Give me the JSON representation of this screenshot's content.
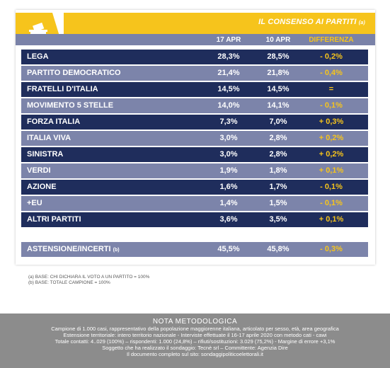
{
  "header": {
    "title": "IL CONSENSO AI PARTITI",
    "title_note": "(a)",
    "columns": [
      "17 APR",
      "10 APR",
      "DIFFERENZA"
    ]
  },
  "rows": [
    {
      "label": "LEGA",
      "note": "",
      "v17": "28,3%",
      "v10": "28,5%",
      "diff": "- 0,2%"
    },
    {
      "label": "PARTITO DEMOCRATICO",
      "note": "",
      "v17": "21,4%",
      "v10": "21,8%",
      "diff": "- 0,4%"
    },
    {
      "label": "FRATELLI D'ITALIA",
      "note": "",
      "v17": "14,5%",
      "v10": "14,5%",
      "diff": "="
    },
    {
      "label": "MOVIMENTO 5 STELLE",
      "note": "",
      "v17": "14,0%",
      "v10": "14,1%",
      "diff": "- 0,1%"
    },
    {
      "label": "FORZA ITALIA",
      "note": "",
      "v17": "7,3%",
      "v10": "7,0%",
      "diff": "+ 0,3%"
    },
    {
      "label": "ITALIA VIVA",
      "note": "",
      "v17": "3,0%",
      "v10": "2,8%",
      "diff": "+ 0,2%"
    },
    {
      "label": "SINISTRA",
      "note": "",
      "v17": "3,0%",
      "v10": "2,8%",
      "diff": "+ 0,2%"
    },
    {
      "label": "VERDI",
      "note": "",
      "v17": "1,9%",
      "v10": "1,8%",
      "diff": "+ 0,1%"
    },
    {
      "label": "AZIONE",
      "note": "",
      "v17": "1,6%",
      "v10": "1,7%",
      "diff": "- 0,1%"
    },
    {
      "label": "+EU",
      "note": "",
      "v17": "1,4%",
      "v10": "1,5%",
      "diff": "- 0,1%"
    },
    {
      "label": "ALTRI PARTITI",
      "note": "",
      "v17": "3,6%",
      "v10": "3,5%",
      "diff": "+ 0,1%"
    },
    {
      "label": "ASTENSIONE/INCERTI",
      "note": "(b)",
      "v17": "45,5%",
      "v10": "45,8%",
      "diff": "- 0,3%"
    }
  ],
  "footnotes": [
    "(a)   BASE: CHI DICHIARA IL VOTO A UN PARTITO = 100%",
    "(b)   BASE: TOTALE CAMPIONE = 100%"
  ],
  "methodology": {
    "title": "NOTA METODOLOGICA",
    "lines": [
      "Campione di 1.000 casi, rappresentativo della popolazione maggiorenne italiana, articolato per sesso, età, area geografica",
      "Estensione territoriale: intero territorio nazionale - Interviste effettuate il 16-17 aprile 2020 con metodo cati - cawi",
      "Totale contatti: 4..029 (100%) – rispondenti: 1.000 (24,8%) – rifiuti/sostituzioni: 3.029 (75,2%) - Margine di errore +3,1%",
      "Soggetto che ha realizzato il sondaggio: Tecnè srl – Committente: Agenzia Dire",
      "Il documento completo sul sito: sondaggipoliticoelettorali.it"
    ]
  },
  "colors": {
    "accent": "#f6c41c",
    "dark_row": "#1f2d5c",
    "light_row": "#7c84aa",
    "header_row": "#7a82a8",
    "method_bg": "#8c8c8c"
  },
  "chart_data": {
    "type": "table",
    "title": "IL CONSENSO AI PARTITI",
    "columns": [
      "17 APR",
      "10 APR",
      "DIFFERENZA"
    ],
    "categories": [
      "LEGA",
      "PARTITO DEMOCRATICO",
      "FRATELLI D'ITALIA",
      "MOVIMENTO 5 STELLE",
      "FORZA ITALIA",
      "ITALIA VIVA",
      "SINISTRA",
      "VERDI",
      "AZIONE",
      "+EU",
      "ALTRI PARTITI",
      "ASTENSIONE/INCERTI"
    ],
    "series": [
      {
        "name": "17 APR",
        "values": [
          28.3,
          21.4,
          14.5,
          14.0,
          7.3,
          3.0,
          3.0,
          1.9,
          1.6,
          1.4,
          3.6,
          45.5
        ]
      },
      {
        "name": "10 APR",
        "values": [
          28.5,
          21.8,
          14.5,
          14.1,
          7.0,
          2.8,
          2.8,
          1.8,
          1.7,
          1.5,
          3.5,
          45.8
        ]
      },
      {
        "name": "DIFFERENZA",
        "values": [
          -0.2,
          -0.4,
          0.0,
          -0.1,
          0.3,
          0.2,
          0.2,
          0.1,
          -0.1,
          -0.1,
          0.1,
          -0.3
        ]
      }
    ]
  }
}
